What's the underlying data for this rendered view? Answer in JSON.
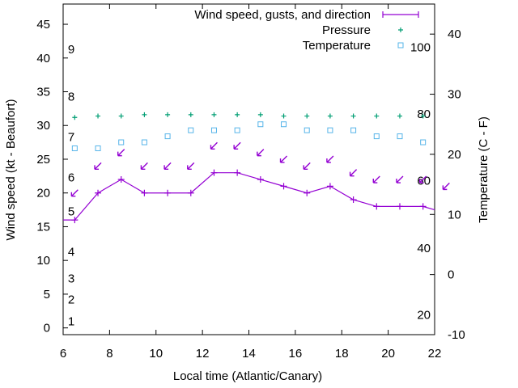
{
  "chart_data": {
    "type": "line",
    "title": "",
    "xlabel": "Local time (Atlantic/Canary)",
    "ylabel": "Wind speed (kt - Beaufort)",
    "y2label": "Temperature (C - F)",
    "xlim": [
      6,
      22
    ],
    "ylim": [
      -1,
      48
    ],
    "y2lim": [
      -10,
      45
    ],
    "xticks": [
      6,
      8,
      10,
      12,
      14,
      16,
      18,
      20,
      22
    ],
    "yticks": [
      0,
      5,
      10,
      15,
      20,
      25,
      30,
      35,
      40,
      45
    ],
    "y2ticks": [
      -10,
      0,
      10,
      20,
      30,
      40
    ],
    "beaufort_labels": [
      {
        "label": "1",
        "y": 1
      },
      {
        "label": "2",
        "y": 4.2
      },
      {
        "label": "3",
        "y": 7.3
      },
      {
        "label": "4",
        "y": 11.3
      },
      {
        "label": "5",
        "y": 17.3
      },
      {
        "label": "6",
        "y": 22.3
      },
      {
        "label": "7",
        "y": 28.3
      },
      {
        "label": "8",
        "y": 34.3
      },
      {
        "label": "9",
        "y": 41.3
      }
    ],
    "fahrenheit_labels": [
      {
        "label": "20",
        "y2": -6.7
      },
      {
        "label": "40",
        "y2": 4.4
      },
      {
        "label": "60",
        "y2": 15.6
      },
      {
        "label": "80",
        "y2": 26.7
      },
      {
        "label": "100",
        "y2": 37.8
      }
    ],
    "legend": {
      "position": "top-right",
      "entries": [
        "Wind speed, gusts, and direction",
        "Pressure",
        "Temperature"
      ]
    },
    "series": [
      {
        "name": "Wind speed, gusts, and direction",
        "color": "#9400d3",
        "x": [
          6,
          6.5,
          7.5,
          8.5,
          9.5,
          10.5,
          11.5,
          12.5,
          13.5,
          14.5,
          15.5,
          16.5,
          17.5,
          18.5,
          19.5,
          20.5,
          21.5,
          22
        ],
        "y": [
          16,
          16,
          20,
          22,
          20,
          20,
          20,
          23,
          23,
          22,
          21,
          20,
          21,
          19,
          18,
          18,
          18,
          17.5
        ]
      },
      {
        "name": "Pressure",
        "color": "#009e73",
        "x": [
          6.5,
          7.5,
          8.5,
          9.5,
          10.5,
          11.5,
          12.5,
          13.5,
          14.5,
          15.5,
          16.5,
          17.5,
          18.5,
          19.5,
          20.5,
          21.5
        ],
        "y": [
          31.2,
          31.4,
          31.4,
          31.6,
          31.6,
          31.6,
          31.6,
          31.6,
          31.6,
          31.4,
          31.4,
          31.4,
          31.4,
          31.4,
          31.4,
          31.4
        ]
      },
      {
        "name": "Temperature",
        "color": "#56b4e9",
        "axis": "y2",
        "x": [
          6.5,
          7.5,
          8.5,
          9.5,
          10.5,
          11.5,
          12.5,
          13.5,
          14.5,
          15.5,
          16.5,
          17.5,
          18.5,
          19.5,
          20.5,
          21.5
        ],
        "y": [
          21,
          21,
          22,
          22,
          23,
          24,
          24,
          24,
          25,
          25,
          24,
          24,
          24,
          23,
          23,
          22
        ]
      }
    ],
    "wind_direction_arrows": {
      "color": "#9400d3",
      "x": [
        6.5,
        7.5,
        8.5,
        9.5,
        10.5,
        11.5,
        12.5,
        13.5,
        14.5,
        15.5,
        16.5,
        17.5,
        18.5,
        19.5,
        20.5,
        21.5,
        22.5
      ],
      "y": [
        20,
        24,
        26,
        24,
        24,
        24,
        27,
        27,
        26,
        25,
        24,
        25,
        23,
        22,
        22,
        22,
        21
      ]
    }
  }
}
